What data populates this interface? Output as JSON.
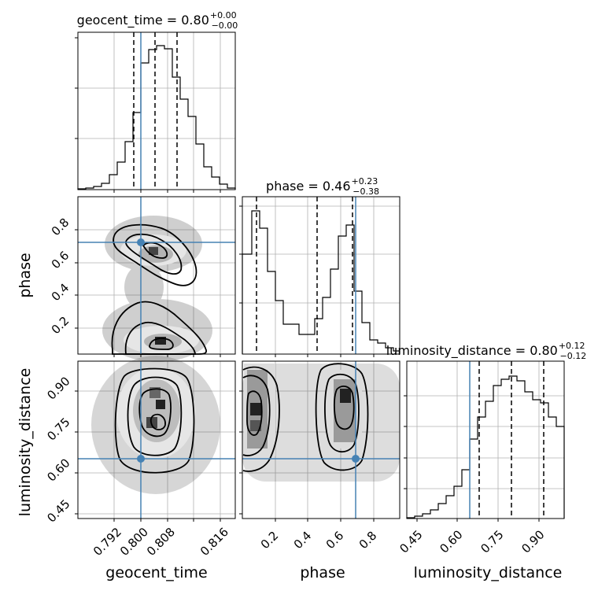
{
  "colors": {
    "truth": "#4682b4",
    "contour": "#000000",
    "grid": "#b0b0b0",
    "scatter": "#444444"
  },
  "chart_data": {
    "type": "corner",
    "grid": true,
    "parameters": [
      "geocent_time",
      "phase",
      "luminosity_distance"
    ],
    "truths": {
      "geocent_time": 0.8,
      "phase": 0.71,
      "luminosity_distance": 0.65
    },
    "titles": {
      "geocent_time": {
        "name": "geocent_time",
        "median": "0.80",
        "plus": "+0.00",
        "minus": "−0.00"
      },
      "phase": {
        "name": "phase",
        "median": "0.46",
        "plus": "+0.23",
        "minus": "−0.38"
      },
      "luminosity_distance": {
        "name": "luminosity_distance",
        "median": "0.80",
        "plus": "+0.12",
        "minus": "−0.12"
      }
    },
    "axes": {
      "geocent_time": {
        "label": "geocent_time",
        "range": [
          0.7865,
          0.8185
        ],
        "ticks": [
          "0.792",
          "0.800",
          "0.808",
          "0.816"
        ]
      },
      "phase": {
        "label": "phase",
        "range": [
          0.02,
          0.99
        ],
        "ticks": [
          "0.2",
          "0.4",
          "0.6",
          "0.8"
        ]
      },
      "luminosity_distance": {
        "label": "luminosity_distance",
        "range": [
          0.42,
          1.0
        ],
        "ticks": [
          "0.45",
          "0.60",
          "0.75",
          "0.90"
        ]
      }
    },
    "quantiles": {
      "geocent_time": [
        0.798,
        0.8025,
        0.8077
      ],
      "phase": [
        0.07,
        0.46,
        0.69
      ],
      "luminosity_distance": [
        0.68,
        0.8,
        0.92
      ]
    },
    "histograms": {
      "geocent_time": {
        "bins": [
          0.7865,
          0.7881,
          0.7897,
          0.7913,
          0.7929,
          0.7945,
          0.7961,
          0.7977,
          0.7993,
          0.8009,
          0.8025,
          0.8041,
          0.8057,
          0.8073,
          0.8089,
          0.8105,
          0.8121,
          0.8137,
          0.8153,
          0.8169,
          0.8185
        ],
        "counts": [
          1,
          2,
          4,
          8,
          22,
          44,
          67,
          85,
          96,
          93,
          87,
          68,
          54,
          38,
          17,
          8,
          5,
          2,
          1,
          0
        ]
      },
      "phase": {
        "bins": [
          0.02,
          0.06,
          0.1,
          0.14,
          0.18,
          0.22,
          0.26,
          0.3,
          0.34,
          0.38,
          0.42,
          0.46,
          0.5,
          0.54,
          0.58,
          0.62,
          0.66,
          0.7,
          0.74,
          0.78,
          0.82,
          0.86,
          0.9,
          0.94,
          0.98
        ],
        "counts": [
          45,
          65,
          55,
          40,
          30,
          22,
          22,
          12,
          12,
          11,
          11,
          9,
          9,
          17,
          25,
          35,
          45,
          60,
          30,
          20,
          10,
          5,
          5,
          3
        ]
      },
      "luminosity_distance": {
        "bins": [
          0.42,
          0.445,
          0.47,
          0.495,
          0.52,
          0.545,
          0.57,
          0.595,
          0.62,
          0.645,
          0.67,
          0.695,
          0.72,
          0.745,
          0.77,
          0.795,
          0.82,
          0.845,
          0.87,
          0.895,
          0.92,
          0.945,
          0.97,
          1.0
        ],
        "counts": [
          1,
          2,
          3,
          6,
          10,
          15,
          20,
          30,
          50,
          70,
          82,
          93,
          98,
          100,
          96,
          92,
          88,
          80,
          75,
          68,
          60,
          55,
          45
        ]
      }
    }
  }
}
